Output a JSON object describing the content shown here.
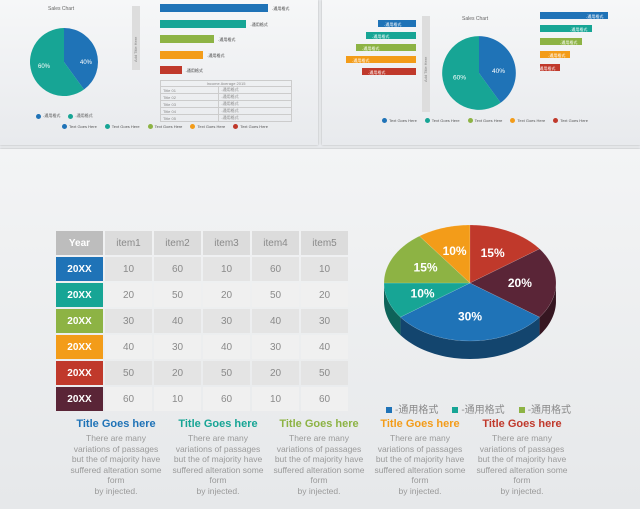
{
  "colors": {
    "blue": "#1f73b7",
    "teal": "#17a595",
    "green": "#8db344",
    "orange": "#f39c19",
    "red": "#c0392b",
    "maroon": "#5a2537"
  },
  "thumb1": {
    "chart_title": "Sales Chart",
    "pie_labels": [
      "40%",
      "60%"
    ],
    "vert_label": "Add Title Here",
    "bar_labels": [
      "-通用格式",
      "-通用格式",
      "-通用格式",
      "-通用格式",
      "-通用格式"
    ],
    "pie_legend": "-通用格式",
    "table_header": "Income Average 2015",
    "table_rows": [
      {
        "label": "Title 01",
        "value": "-通用格式"
      },
      {
        "label": "Title 02",
        "value": "-通用格式"
      },
      {
        "label": "Title 03",
        "value": "-通用格式"
      },
      {
        "label": "Title 04",
        "value": "-通用格式"
      },
      {
        "label": "Title 05",
        "value": "-通用格式"
      }
    ],
    "legend": [
      "Text Goes Here",
      "Text Goes Here",
      "Text Goes Here",
      "Text Goes Here",
      "Text Goes Here"
    ]
  },
  "thumb2": {
    "chart_title": "Sales Chart",
    "pie_labels": [
      "40%",
      "60%"
    ],
    "vert_label": "Add Title Here",
    "left_bar_labels": [
      "-通用格式",
      "-通用格式",
      "-通用格式",
      "-通用格式",
      "-通用格式"
    ],
    "right_bar_labels": [
      "-通用格式",
      "-通用格式",
      "-通用格式",
      "-通用格式",
      "-通用格式"
    ],
    "legend": [
      "Text Goes Here",
      "Text Goes Here",
      "Text Goes Here",
      "Text Goes Here",
      "Text Goes Here"
    ]
  },
  "main": {
    "table": {
      "header": [
        "Year",
        "item1",
        "item2",
        "item3",
        "item4",
        "item5"
      ],
      "rows": [
        {
          "year": "20XX",
          "values": [
            "10",
            "60",
            "10",
            "60",
            "10"
          ]
        },
        {
          "year": "20XX",
          "values": [
            "20",
            "50",
            "20",
            "50",
            "20"
          ]
        },
        {
          "year": "20XX",
          "values": [
            "30",
            "40",
            "30",
            "40",
            "30"
          ]
        },
        {
          "year": "20XX",
          "values": [
            "40",
            "30",
            "40",
            "30",
            "40"
          ]
        },
        {
          "year": "20XX",
          "values": [
            "50",
            "20",
            "50",
            "20",
            "50"
          ]
        },
        {
          "year": "20XX",
          "values": [
            "60",
            "10",
            "60",
            "10",
            "60"
          ]
        }
      ]
    },
    "pie_legend": [
      "-通用格式",
      "-通用格式",
      "-通用格式"
    ],
    "columns": [
      {
        "title": "Title Goes here",
        "lines": [
          "There are many",
          "variations of passages",
          "but the of majority have",
          "suffered alteration  some",
          "form",
          "by injected."
        ]
      },
      {
        "title": "Title Goes here",
        "lines": [
          "There are many",
          "variations of passages",
          "but the of majority have",
          "suffered alteration  some",
          "form",
          "by injected."
        ]
      },
      {
        "title": "Title Goes here",
        "lines": [
          "There are many",
          "variations of passages",
          "but the of majority have",
          "suffered alteration  some",
          "form",
          "by injected."
        ]
      },
      {
        "title": "Title Goes here",
        "lines": [
          "There are many",
          "variations of passages",
          "but the of majority have",
          "suffered alteration  some",
          "form",
          "by injected."
        ]
      },
      {
        "title": "Title Goes here",
        "lines": [
          "There are many",
          "variations of passages",
          "but the of majority have",
          "suffered alteration  some",
          "form",
          "by injected."
        ]
      }
    ]
  },
  "chart_data": [
    {
      "type": "pie",
      "title": "Sales Chart",
      "labels": [
        "40%",
        "60%"
      ],
      "values": [
        40,
        60
      ]
    },
    {
      "type": "bar",
      "orientation": "horizontal",
      "values": [
        100,
        80,
        50,
        40,
        20
      ]
    },
    {
      "type": "pie",
      "title": "Sales Chart",
      "labels": [
        "40%",
        "60%"
      ],
      "values": [
        40,
        60
      ]
    },
    {
      "type": "table",
      "columns": [
        "Year",
        "item1",
        "item2",
        "item3",
        "item4",
        "item5"
      ],
      "rows": [
        [
          "20XX",
          10,
          60,
          10,
          60,
          10
        ],
        [
          "20XX",
          20,
          50,
          20,
          50,
          20
        ],
        [
          "20XX",
          30,
          40,
          30,
          40,
          30
        ],
        [
          "20XX",
          40,
          30,
          40,
          30,
          40
        ],
        [
          "20XX",
          50,
          20,
          50,
          20,
          50
        ],
        [
          "20XX",
          60,
          10,
          60,
          10,
          60
        ]
      ]
    },
    {
      "type": "pie",
      "style": "3d",
      "values": [
        30,
        10,
        15,
        10,
        15,
        20
      ],
      "labels": [
        "30%",
        "10%",
        "15%",
        "10%",
        "15%",
        "20%"
      ],
      "colors": [
        "#1f73b7",
        "#17a595",
        "#8db344",
        "#f39c19",
        "#c0392b",
        "#5a2537"
      ]
    }
  ]
}
